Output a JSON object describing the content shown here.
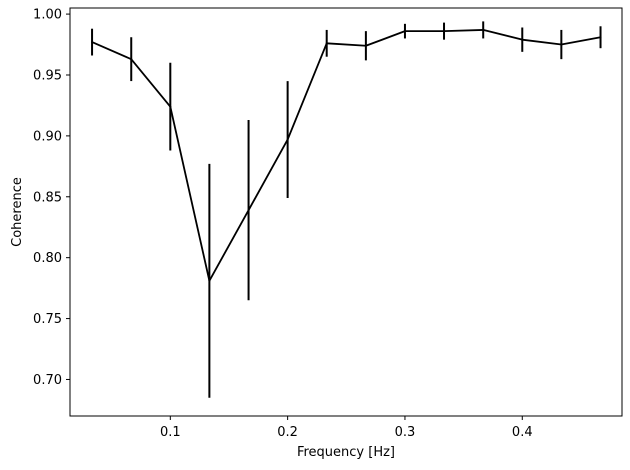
{
  "chart_data": {
    "type": "line",
    "title": "",
    "xlabel": "Frequency [Hz]",
    "ylabel": "Coherence",
    "xlim": [
      0.0145,
      0.485
    ],
    "ylim": [
      0.67,
      1.005
    ],
    "x_ticks": [
      0.1,
      0.2,
      0.3,
      0.4
    ],
    "x_tick_labels": [
      "0.1",
      "0.2",
      "0.3",
      "0.4"
    ],
    "y_ticks": [
      0.7,
      0.75,
      0.8,
      0.85,
      0.9,
      0.95,
      1.0
    ],
    "y_tick_labels": [
      "0.70",
      "0.75",
      "0.80",
      "0.85",
      "0.90",
      "0.95",
      "1.00"
    ],
    "grid": false,
    "series": [
      {
        "color": "#000000",
        "x": [
          0.0333,
          0.0667,
          0.1,
          0.1333,
          0.1667,
          0.2,
          0.2333,
          0.2667,
          0.3,
          0.3333,
          0.3667,
          0.4,
          0.4333,
          0.4667
        ],
        "y": [
          0.977,
          0.963,
          0.924,
          0.781,
          0.839,
          0.897,
          0.976,
          0.974,
          0.986,
          0.986,
          0.987,
          0.979,
          0.975,
          0.981
        ],
        "yerr": [
          0.011,
          0.018,
          0.036,
          0.096,
          0.074,
          0.048,
          0.011,
          0.012,
          0.006,
          0.007,
          0.007,
          0.01,
          0.012,
          0.009
        ]
      }
    ]
  }
}
